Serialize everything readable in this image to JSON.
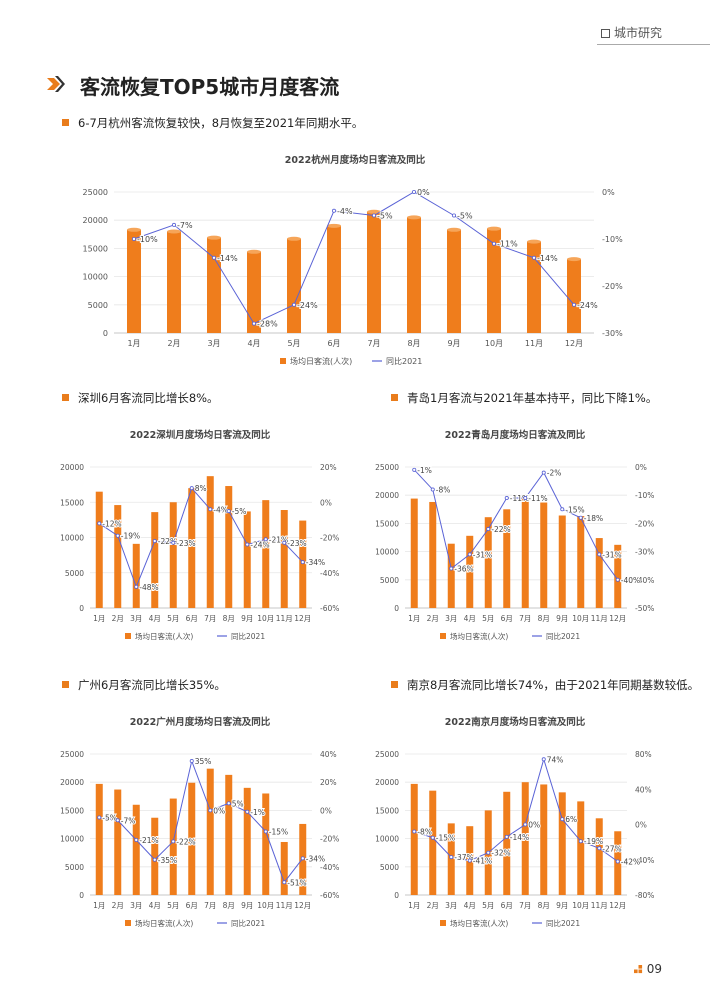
{
  "header": {
    "section_tag": "城市研究"
  },
  "page": {
    "title": "客流恢复TOP5城市月度客流",
    "number": "09"
  },
  "colors": {
    "bar": "#ef7d1c",
    "line": "#5a63d6",
    "accent": "#e97c1b"
  },
  "bullets": {
    "hangzhou": "6-7月杭州客流恢复较快，8月恢复至2021年同期水平。",
    "shenzhen": "深圳6月客流同比增长8%。",
    "qingdao": "青岛1月客流与2021年基本持平，同比下降1%。",
    "guangzhou": "广州6月客流同比增长35%。",
    "nanjing": "南京8月客流同比增长74%，由于2021年同期基数较低。"
  },
  "chart_data": [
    {
      "id": "hangzhou",
      "type": "bar+line",
      "title": "2022杭州月度场均日客流及同比",
      "categories": [
        "1月",
        "2月",
        "3月",
        "4月",
        "5月",
        "6月",
        "7月",
        "8月",
        "9月",
        "10月",
        "11月",
        "12月"
      ],
      "series": [
        {
          "name": "场均日客流(人次)",
          "axis": "left",
          "type": "bar",
          "values": [
            18300,
            18000,
            16900,
            14400,
            16700,
            19000,
            21500,
            20500,
            18300,
            18500,
            16200,
            13100
          ]
        },
        {
          "name": "同比2021",
          "axis": "right",
          "type": "line",
          "values": [
            -10,
            -7,
            -14,
            -28,
            -24,
            -4,
            -5,
            0,
            -5,
            -11,
            -14,
            -24
          ]
        }
      ],
      "y_left": {
        "min": 0,
        "max": 25000,
        "ticks": [
          0,
          5000,
          10000,
          15000,
          20000,
          25000
        ]
      },
      "y_right": {
        "min": -30,
        "max": 0,
        "ticks": [
          0,
          -10,
          -20,
          -30
        ]
      },
      "legend": "bottom"
    },
    {
      "id": "shenzhen",
      "type": "bar+line",
      "title": "2022深圳月度场均日客流及同比",
      "categories": [
        "1月",
        "2月",
        "3月",
        "4月",
        "5月",
        "6月",
        "7月",
        "8月",
        "9月",
        "10月",
        "11月",
        "12月"
      ],
      "series": [
        {
          "name": "场均日客流(人次)",
          "axis": "left",
          "type": "bar",
          "values": [
            16500,
            14600,
            9100,
            13600,
            15000,
            17000,
            18700,
            17300,
            13700,
            15300,
            13900,
            12400
          ]
        },
        {
          "name": "同比2021",
          "axis": "right",
          "type": "line",
          "values": [
            -12,
            -19,
            -48,
            -22,
            -23,
            8,
            -4,
            -5,
            -24,
            -21,
            -23,
            -34
          ]
        }
      ],
      "y_left": {
        "min": 0,
        "max": 20000,
        "ticks": [
          0,
          5000,
          10000,
          15000,
          20000
        ]
      },
      "y_right": {
        "min": -60,
        "max": 20,
        "ticks": [
          20,
          0,
          -20,
          -40,
          -60
        ]
      },
      "legend": "bottom"
    },
    {
      "id": "qingdao",
      "type": "bar+line",
      "title": "2022青岛月度场均日客流及同比",
      "categories": [
        "1月",
        "2月",
        "3月",
        "4月",
        "5月",
        "6月",
        "7月",
        "8月",
        "9月",
        "10月",
        "11月",
        "12月"
      ],
      "series": [
        {
          "name": "场均日客流(人次)",
          "axis": "left",
          "type": "bar",
          "values": [
            19400,
            18800,
            11400,
            12800,
            16100,
            17500,
            19400,
            18700,
            16400,
            16300,
            12400,
            11200
          ]
        },
        {
          "name": "同比2021",
          "axis": "right",
          "type": "line",
          "values": [
            -1,
            -8,
            -36,
            -31,
            -22,
            -11,
            -11,
            -2,
            -15,
            -18,
            -31,
            -40
          ]
        }
      ],
      "y_left": {
        "min": 0,
        "max": 25000,
        "ticks": [
          0,
          5000,
          10000,
          15000,
          20000,
          25000
        ]
      },
      "y_right": {
        "min": -50,
        "max": 0,
        "ticks": [
          0,
          -10,
          -20,
          -30,
          -40,
          -50
        ]
      },
      "legend": "bottom"
    },
    {
      "id": "guangzhou",
      "type": "bar+line",
      "title": "2022广州月度场均日客流及同比",
      "categories": [
        "1月",
        "2月",
        "3月",
        "4月",
        "5月",
        "6月",
        "7月",
        "8月",
        "9月",
        "10月",
        "11月",
        "12月"
      ],
      "series": [
        {
          "name": "场均日客流(人次)",
          "axis": "left",
          "type": "bar",
          "values": [
            19700,
            18700,
            16000,
            13700,
            17100,
            19900,
            22400,
            21300,
            19000,
            18000,
            9400,
            12600
          ]
        },
        {
          "name": "同比2021",
          "axis": "right",
          "type": "line",
          "values": [
            -5,
            -7,
            -21,
            -35,
            -22,
            35,
            0,
            5,
            -1,
            -15,
            -51,
            -34
          ]
        }
      ],
      "y_left": {
        "min": 0,
        "max": 25000,
        "ticks": [
          0,
          5000,
          10000,
          15000,
          20000,
          25000
        ]
      },
      "y_right": {
        "min": -60,
        "max": 40,
        "ticks": [
          40,
          20,
          0,
          -20,
          -40,
          -60
        ]
      },
      "legend": "bottom"
    },
    {
      "id": "nanjing",
      "type": "bar+line",
      "title": "2022南京月度场均日客流及同比",
      "categories": [
        "1月",
        "2月",
        "3月",
        "4月",
        "5月",
        "6月",
        "7月",
        "8月",
        "9月",
        "10月",
        "11月",
        "12月"
      ],
      "series": [
        {
          "name": "场均日客流(人次)",
          "axis": "left",
          "type": "bar",
          "values": [
            19700,
            18500,
            12700,
            12200,
            15000,
            18300,
            20000,
            19600,
            18200,
            16600,
            13600,
            11300
          ]
        },
        {
          "name": "同比2021",
          "axis": "right",
          "type": "line",
          "values": [
            -8,
            -15,
            -37,
            -41,
            -32,
            -14,
            0,
            74,
            6,
            -19,
            -27,
            -42
          ]
        }
      ],
      "y_left": {
        "min": 0,
        "max": 25000,
        "ticks": [
          0,
          5000,
          10000,
          15000,
          20000,
          25000
        ]
      },
      "y_right": {
        "min": -80,
        "max": 80,
        "ticks": [
          80,
          40,
          0,
          -40,
          -80
        ]
      },
      "y_right_format": "percent",
      "legend": "bottom"
    }
  ]
}
